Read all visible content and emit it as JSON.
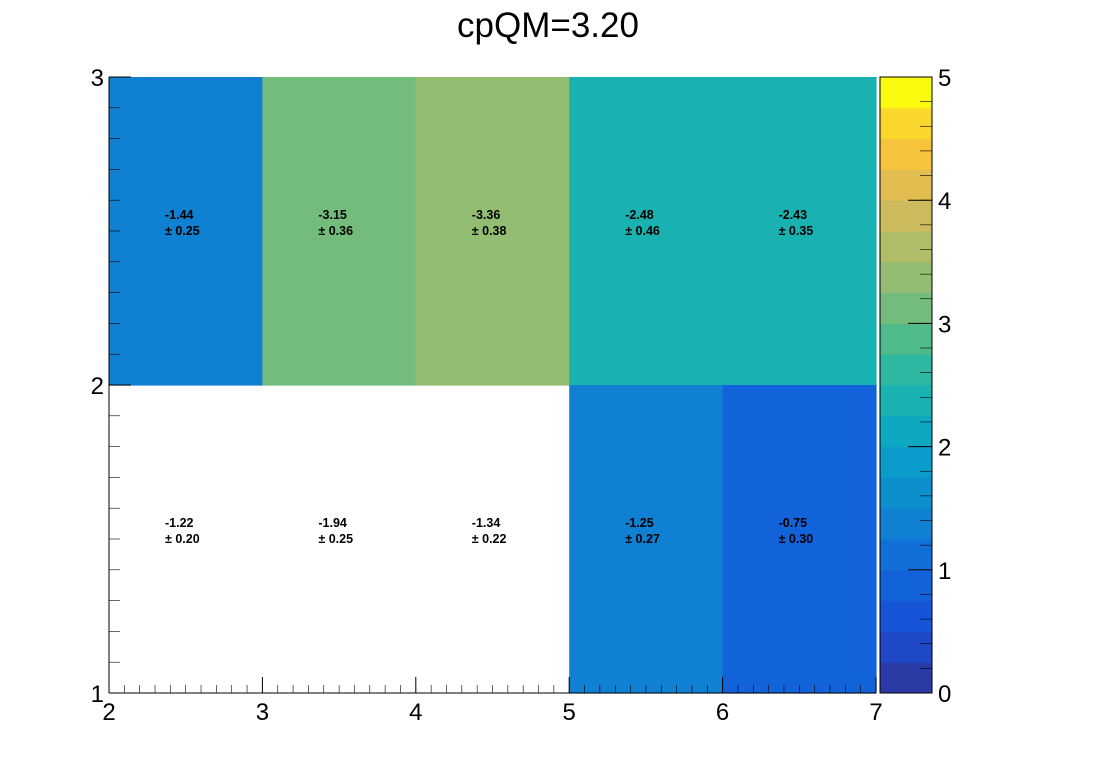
{
  "chart_data": {
    "type": "heatmap",
    "title": "cpQM=3.20",
    "xlabel": "",
    "ylabel": "",
    "x_bin_edges": [
      2,
      3,
      4,
      5,
      6,
      7
    ],
    "y_bin_edges": [
      1,
      2,
      3
    ],
    "x_ticks": [
      2,
      3,
      4,
      5,
      6,
      7
    ],
    "y_ticks": [
      1,
      2,
      3
    ],
    "xlim": [
      2,
      7
    ],
    "ylim": [
      1,
      3
    ],
    "z_range": [
      0,
      5
    ],
    "z_ticks": [
      0,
      1,
      2,
      3,
      4,
      5
    ],
    "color_levels": 20,
    "grid": false,
    "cells": [
      {
        "x": 2.5,
        "y": 2.5,
        "value": "-1.44",
        "error": "± 0.25",
        "z": 1.44
      },
      {
        "x": 3.5,
        "y": 2.5,
        "value": "-3.15",
        "error": "± 0.36",
        "z": 3.15
      },
      {
        "x": 4.5,
        "y": 2.5,
        "value": "-3.36",
        "error": "± 0.38",
        "z": 3.36
      },
      {
        "x": 5.5,
        "y": 2.5,
        "value": "-2.48",
        "error": "± 0.46",
        "z": 2.48
      },
      {
        "x": 6.5,
        "y": 2.5,
        "value": "-2.43",
        "error": "± 0.35",
        "z": 2.43
      },
      {
        "x": 2.5,
        "y": 1.5,
        "value": "-1.22",
        "error": "± 0.20",
        "z": null
      },
      {
        "x": 3.5,
        "y": 1.5,
        "value": "-1.94",
        "error": "± 0.25",
        "z": null
      },
      {
        "x": 4.5,
        "y": 1.5,
        "value": "-1.34",
        "error": "± 0.22",
        "z": null
      },
      {
        "x": 5.5,
        "y": 1.5,
        "value": "-1.25",
        "error": "± 0.27",
        "z": 1.25
      },
      {
        "x": 6.5,
        "y": 1.5,
        "value": "-0.75",
        "error": "± 0.30",
        "z": 0.75
      }
    ],
    "palette": [
      "#2a3ba6",
      "#1e48c6",
      "#1655d8",
      "#1263da",
      "#1170d8",
      "#0f80d2",
      "#0d8fce",
      "#0a9dcb",
      "#0ea8c2",
      "#1ab2b1",
      "#2eb8a1",
      "#50bb8a",
      "#73bc7c",
      "#93bd73",
      "#b1bd69",
      "#cdbb5e",
      "#e2bd4f",
      "#f5c33c",
      "#f9d82b",
      "#fafa0f"
    ]
  }
}
